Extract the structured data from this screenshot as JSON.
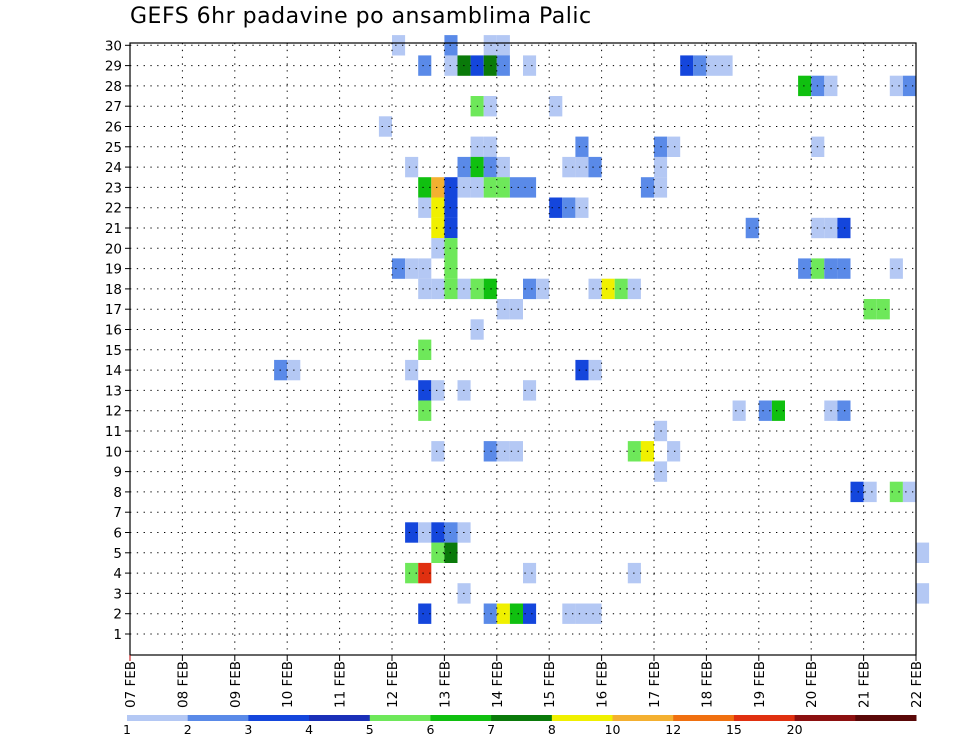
{
  "title": "GEFS 6hr padavine po ansamblima Palic",
  "chart_data": {
    "type": "heatmap",
    "title": "GEFS 6hr padavine po ansamblima Palic",
    "xlabel": "",
    "ylabel": "",
    "grid": true,
    "x_ticks": [
      "07 FEB",
      "08 FEB",
      "09 FEB",
      "10 FEB",
      "11 FEB",
      "12 FEB",
      "13 FEB",
      "14 FEB",
      "15 FEB",
      "16 FEB",
      "17 FEB",
      "18 FEB",
      "19 FEB",
      "20 FEB",
      "21 FEB",
      "22 FEB"
    ],
    "y_ticks": [
      1,
      2,
      3,
      4,
      5,
      6,
      7,
      8,
      9,
      10,
      11,
      12,
      13,
      14,
      15,
      16,
      17,
      18,
      19,
      20,
      21,
      22,
      23,
      24,
      25,
      26,
      27,
      28,
      29,
      30
    ],
    "x_step_hours": 6,
    "levels": [
      "1",
      "2",
      "3",
      "4",
      "5",
      "6",
      "7",
      "8",
      "10",
      "12",
      "15",
      "20"
    ],
    "level_colors": [
      "#b4c8f4",
      "#5a8ae8",
      "#1446dc",
      "#1a2fb8",
      "#6ee85a",
      "#10c010",
      "#0a7a0a",
      "#f0f000",
      "#f4b030",
      "#f07010",
      "#e03010",
      "#8c1010",
      "#5a0808"
    ],
    "colorbar_labels": [
      "1",
      "2",
      "3",
      "4",
      "5",
      "6",
      "7",
      "8",
      "10",
      "12",
      "15",
      "20"
    ],
    "cells": [
      {
        "member": 30,
        "start": "12 FEB 00Z",
        "bin": 0
      },
      {
        "member": 30,
        "start": "13 FEB 00Z",
        "bin": 1
      },
      {
        "member": 30,
        "start": "13 FEB 18Z",
        "bin": 0
      },
      {
        "member": 30,
        "start": "14 FEB 00Z",
        "bin": 0
      },
      {
        "member": 29,
        "start": "12 FEB 12Z",
        "bin": 1
      },
      {
        "member": 29,
        "start": "13 FEB 00Z",
        "bin": 0
      },
      {
        "member": 29,
        "start": "13 FEB 06Z",
        "bin": 6
      },
      {
        "member": 29,
        "start": "13 FEB 12Z",
        "bin": 2
      },
      {
        "member": 29,
        "start": "13 FEB 18Z",
        "bin": 6
      },
      {
        "member": 29,
        "start": "14 FEB 00Z",
        "bin": 1
      },
      {
        "member": 29,
        "start": "14 FEB 12Z",
        "bin": 0
      },
      {
        "member": 29,
        "start": "17 FEB 12Z",
        "bin": 2
      },
      {
        "member": 29,
        "start": "17 FEB 18Z",
        "bin": 1
      },
      {
        "member": 29,
        "start": "18 FEB 00Z",
        "bin": 0
      },
      {
        "member": 29,
        "start": "18 FEB 06Z",
        "bin": 0
      },
      {
        "member": 28,
        "start": "19 FEB 18Z",
        "bin": 5
      },
      {
        "member": 28,
        "start": "20 FEB 00Z",
        "bin": 1
      },
      {
        "member": 28,
        "start": "20 FEB 06Z",
        "bin": 0
      },
      {
        "member": 28,
        "start": "21 FEB 12Z",
        "bin": 0
      },
      {
        "member": 28,
        "start": "21 FEB 18Z",
        "bin": 1
      },
      {
        "member": 27,
        "start": "13 FEB 12Z",
        "bin": 4
      },
      {
        "member": 27,
        "start": "13 FEB 18Z",
        "bin": 0
      },
      {
        "member": 27,
        "start": "15 FEB 00Z",
        "bin": 0
      },
      {
        "member": 26,
        "start": "11 FEB 18Z",
        "bin": 0
      },
      {
        "member": 25,
        "start": "13 FEB 12Z",
        "bin": 0
      },
      {
        "member": 25,
        "start": "13 FEB 18Z",
        "bin": 0
      },
      {
        "member": 25,
        "start": "15 FEB 12Z",
        "bin": 1
      },
      {
        "member": 25,
        "start": "17 FEB 00Z",
        "bin": 1
      },
      {
        "member": 25,
        "start": "17 FEB 06Z",
        "bin": 0
      },
      {
        "member": 25,
        "start": "20 FEB 00Z",
        "bin": 0
      },
      {
        "member": 24,
        "start": "12 FEB 06Z",
        "bin": 0
      },
      {
        "member": 24,
        "start": "13 FEB 06Z",
        "bin": 1
      },
      {
        "member": 24,
        "start": "13 FEB 12Z",
        "bin": 5
      },
      {
        "member": 24,
        "start": "13 FEB 18Z",
        "bin": 1
      },
      {
        "member": 24,
        "start": "14 FEB 00Z",
        "bin": 0
      },
      {
        "member": 24,
        "start": "15 FEB 06Z",
        "bin": 0
      },
      {
        "member": 24,
        "start": "15 FEB 12Z",
        "bin": 0
      },
      {
        "member": 24,
        "start": "15 FEB 18Z",
        "bin": 1
      },
      {
        "member": 24,
        "start": "17 FEB 00Z",
        "bin": 0
      },
      {
        "member": 23,
        "start": "12 FEB 12Z",
        "bin": 5
      },
      {
        "member": 23,
        "start": "12 FEB 18Z",
        "bin": 8
      },
      {
        "member": 23,
        "start": "13 FEB 00Z",
        "bin": 2
      },
      {
        "member": 23,
        "start": "13 FEB 06Z",
        "bin": 0
      },
      {
        "member": 23,
        "start": "13 FEB 12Z",
        "bin": 0
      },
      {
        "member": 23,
        "start": "13 FEB 18Z",
        "bin": 4
      },
      {
        "member": 23,
        "start": "14 FEB 00Z",
        "bin": 4
      },
      {
        "member": 23,
        "start": "14 FEB 06Z",
        "bin": 1
      },
      {
        "member": 23,
        "start": "14 FEB 12Z",
        "bin": 1
      },
      {
        "member": 23,
        "start": "16 FEB 18Z",
        "bin": 1
      },
      {
        "member": 23,
        "start": "17 FEB 00Z",
        "bin": 0
      },
      {
        "member": 22,
        "start": "12 FEB 12Z",
        "bin": 0
      },
      {
        "member": 22,
        "start": "12 FEB 18Z",
        "bin": 7
      },
      {
        "member": 22,
        "start": "13 FEB 00Z",
        "bin": 2
      },
      {
        "member": 22,
        "start": "15 FEB 00Z",
        "bin": 2
      },
      {
        "member": 22,
        "start": "15 FEB 06Z",
        "bin": 1
      },
      {
        "member": 22,
        "start": "15 FEB 12Z",
        "bin": 0
      },
      {
        "member": 21,
        "start": "12 FEB 18Z",
        "bin": 7
      },
      {
        "member": 21,
        "start": "13 FEB 00Z",
        "bin": 2
      },
      {
        "member": 21,
        "start": "18 FEB 18Z",
        "bin": 1
      },
      {
        "member": 21,
        "start": "20 FEB 00Z",
        "bin": 0
      },
      {
        "member": 21,
        "start": "20 FEB 06Z",
        "bin": 0
      },
      {
        "member": 21,
        "start": "20 FEB 12Z",
        "bin": 2
      },
      {
        "member": 20,
        "start": "12 FEB 18Z",
        "bin": 0
      },
      {
        "member": 20,
        "start": "13 FEB 00Z",
        "bin": 4
      },
      {
        "member": 19,
        "start": "12 FEB 00Z",
        "bin": 1
      },
      {
        "member": 19,
        "start": "12 FEB 06Z",
        "bin": 0
      },
      {
        "member": 19,
        "start": "12 FEB 12Z",
        "bin": 0
      },
      {
        "member": 19,
        "start": "13 FEB 00Z",
        "bin": 4
      },
      {
        "member": 19,
        "start": "19 FEB 18Z",
        "bin": 1
      },
      {
        "member": 19,
        "start": "20 FEB 00Z",
        "bin": 4
      },
      {
        "member": 19,
        "start": "20 FEB 06Z",
        "bin": 1
      },
      {
        "member": 19,
        "start": "20 FEB 12Z",
        "bin": 1
      },
      {
        "member": 19,
        "start": "21 FEB 12Z",
        "bin": 0
      },
      {
        "member": 18,
        "start": "12 FEB 12Z",
        "bin": 0
      },
      {
        "member": 18,
        "start": "12 FEB 18Z",
        "bin": 0
      },
      {
        "member": 18,
        "start": "13 FEB 00Z",
        "bin": 4
      },
      {
        "member": 18,
        "start": "13 FEB 06Z",
        "bin": 0
      },
      {
        "member": 18,
        "start": "13 FEB 12Z",
        "bin": 4
      },
      {
        "member": 18,
        "start": "13 FEB 18Z",
        "bin": 5
      },
      {
        "member": 18,
        "start": "14 FEB 12Z",
        "bin": 1
      },
      {
        "member": 18,
        "start": "14 FEB 18Z",
        "bin": 0
      },
      {
        "member": 18,
        "start": "15 FEB 18Z",
        "bin": 0
      },
      {
        "member": 18,
        "start": "16 FEB 00Z",
        "bin": 7
      },
      {
        "member": 18,
        "start": "16 FEB 06Z",
        "bin": 4
      },
      {
        "member": 18,
        "start": "16 FEB 12Z",
        "bin": 0
      },
      {
        "member": 17,
        "start": "14 FEB 00Z",
        "bin": 0
      },
      {
        "member": 17,
        "start": "14 FEB 06Z",
        "bin": 0
      },
      {
        "member": 17,
        "start": "21 FEB 00Z",
        "bin": 4
      },
      {
        "member": 17,
        "start": "21 FEB 06Z",
        "bin": 4
      },
      {
        "member": 16,
        "start": "13 FEB 12Z",
        "bin": 0
      },
      {
        "member": 15,
        "start": "12 FEB 12Z",
        "bin": 4
      },
      {
        "member": 14,
        "start": "09 FEB 18Z",
        "bin": 1
      },
      {
        "member": 14,
        "start": "10 FEB 00Z",
        "bin": 0
      },
      {
        "member": 14,
        "start": "12 FEB 06Z",
        "bin": 0
      },
      {
        "member": 14,
        "start": "15 FEB 12Z",
        "bin": 2
      },
      {
        "member": 14,
        "start": "15 FEB 18Z",
        "bin": 0
      },
      {
        "member": 13,
        "start": "12 FEB 12Z",
        "bin": 2
      },
      {
        "member": 13,
        "start": "12 FEB 18Z",
        "bin": 0
      },
      {
        "member": 13,
        "start": "13 FEB 06Z",
        "bin": 0
      },
      {
        "member": 13,
        "start": "14 FEB 12Z",
        "bin": 0
      },
      {
        "member": 12,
        "start": "12 FEB 12Z",
        "bin": 4
      },
      {
        "member": 12,
        "start": "18 FEB 12Z",
        "bin": 0
      },
      {
        "member": 12,
        "start": "19 FEB 00Z",
        "bin": 1
      },
      {
        "member": 12,
        "start": "19 FEB 06Z",
        "bin": 5
      },
      {
        "member": 12,
        "start": "20 FEB 06Z",
        "bin": 0
      },
      {
        "member": 12,
        "start": "20 FEB 12Z",
        "bin": 1
      },
      {
        "member": 11,
        "start": "17 FEB 00Z",
        "bin": 0
      },
      {
        "member": 10,
        "start": "12 FEB 18Z",
        "bin": 0
      },
      {
        "member": 10,
        "start": "13 FEB 18Z",
        "bin": 1
      },
      {
        "member": 10,
        "start": "14 FEB 00Z",
        "bin": 0
      },
      {
        "member": 10,
        "start": "14 FEB 06Z",
        "bin": 0
      },
      {
        "member": 10,
        "start": "16 FEB 12Z",
        "bin": 4
      },
      {
        "member": 10,
        "start": "16 FEB 18Z",
        "bin": 7
      },
      {
        "member": 10,
        "start": "17 FEB 06Z",
        "bin": 0
      },
      {
        "member": 9,
        "start": "17 FEB 00Z",
        "bin": 0
      },
      {
        "member": 8,
        "start": "20 FEB 18Z",
        "bin": 2
      },
      {
        "member": 8,
        "start": "21 FEB 00Z",
        "bin": 0
      },
      {
        "member": 8,
        "start": "21 FEB 12Z",
        "bin": 4
      },
      {
        "member": 8,
        "start": "21 FEB 18Z",
        "bin": 0
      },
      {
        "member": 6,
        "start": "12 FEB 06Z",
        "bin": 2
      },
      {
        "member": 6,
        "start": "12 FEB 12Z",
        "bin": 0
      },
      {
        "member": 6,
        "start": "12 FEB 18Z",
        "bin": 2
      },
      {
        "member": 6,
        "start": "13 FEB 00Z",
        "bin": 1
      },
      {
        "member": 6,
        "start": "13 FEB 06Z",
        "bin": 0
      },
      {
        "member": 5,
        "start": "12 FEB 18Z",
        "bin": 4
      },
      {
        "member": 5,
        "start": "13 FEB 00Z",
        "bin": 6
      },
      {
        "member": 5,
        "start": "22 FEB 00Z",
        "bin": 0
      },
      {
        "member": 4,
        "start": "12 FEB 06Z",
        "bin": 4
      },
      {
        "member": 4,
        "start": "12 FEB 12Z",
        "bin": 10
      },
      {
        "member": 4,
        "start": "14 FEB 12Z",
        "bin": 0
      },
      {
        "member": 4,
        "start": "16 FEB 12Z",
        "bin": 0
      },
      {
        "member": 3,
        "start": "13 FEB 06Z",
        "bin": 0
      },
      {
        "member": 3,
        "start": "22 FEB 00Z",
        "bin": 0
      },
      {
        "member": 2,
        "start": "12 FEB 12Z",
        "bin": 2
      },
      {
        "member": 2,
        "start": "13 FEB 18Z",
        "bin": 1
      },
      {
        "member": 2,
        "start": "14 FEB 00Z",
        "bin": 7
      },
      {
        "member": 2,
        "start": "14 FEB 06Z",
        "bin": 5
      },
      {
        "member": 2,
        "start": "14 FEB 12Z",
        "bin": 2
      },
      {
        "member": 2,
        "start": "15 FEB 06Z",
        "bin": 0
      },
      {
        "member": 2,
        "start": "15 FEB 12Z",
        "bin": 0
      },
      {
        "member": 2,
        "start": "15 FEB 18Z",
        "bin": 0
      }
    ]
  }
}
